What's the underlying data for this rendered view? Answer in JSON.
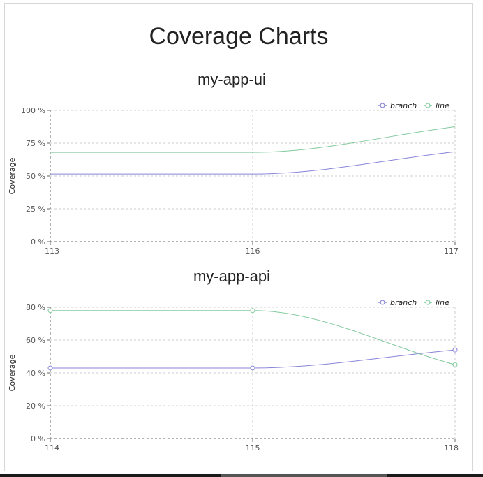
{
  "page": {
    "title": "Coverage Charts"
  },
  "colors": {
    "branch": "#8884d8",
    "line": "#82ca9d",
    "grid": "#cccccc",
    "axis": "#666666"
  },
  "chart_data": [
    {
      "type": "line",
      "title": "my-app-ui",
      "ylabel": "Coverage",
      "x": [
        113,
        116,
        117
      ],
      "ylim": [
        0,
        100
      ],
      "yticks": [
        0,
        25,
        50,
        75,
        100
      ],
      "ytick_suffix": " %",
      "show_points": false,
      "grid": true,
      "legend": "top-right",
      "series": [
        {
          "name": "branch",
          "key": "branch",
          "values": [
            51.5,
            51.5,
            68.5
          ]
        },
        {
          "name": "line",
          "key": "line",
          "values": [
            68,
            68,
            87.5
          ]
        }
      ]
    },
    {
      "type": "line",
      "title": "my-app-api",
      "ylabel": "Coverage",
      "x": [
        114,
        115,
        118
      ],
      "ylim": [
        0,
        80
      ],
      "yticks": [
        0,
        20,
        40,
        60,
        80
      ],
      "ytick_suffix": " %",
      "show_points": true,
      "grid": true,
      "legend": "top-right",
      "series": [
        {
          "name": "branch",
          "key": "branch",
          "values": [
            43,
            43,
            54
          ]
        },
        {
          "name": "line",
          "key": "line",
          "values": [
            78,
            78,
            45
          ]
        }
      ]
    }
  ]
}
